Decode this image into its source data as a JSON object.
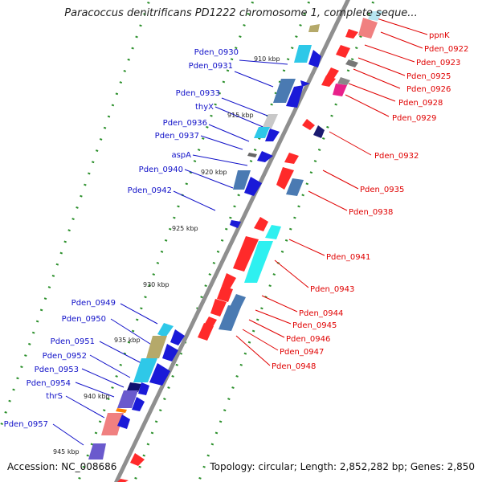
{
  "header": {
    "title": "Paracoccus denitrificans PD1222 chromosome 1, complete seque..."
  },
  "footer": {
    "accession": "Accession: NC_008686",
    "topology": "Topology: circular; Length: 2,852,282 bp; Genes: 2,850"
  },
  "colors": {
    "left_label": "#1010c8",
    "right_label": "#e00000",
    "backbone": "#8f8f8f",
    "tick": "#2a8f2a"
  },
  "ticks": [
    {
      "label": "910 kbp"
    },
    {
      "label": "915 kbp"
    },
    {
      "label": "920 kbp"
    },
    {
      "label": "925 kbp"
    },
    {
      "label": "930 kbp"
    },
    {
      "label": "935 kbp"
    },
    {
      "label": "940 kbp"
    },
    {
      "label": "945 kbp"
    }
  ],
  "left_labels": [
    "Pden_0930",
    "Pden_0931",
    "Pden_0933",
    "thyX",
    "Pden_0936",
    "Pden_0937",
    "aspA",
    "Pden_0940",
    "Pden_0942",
    "Pden_0949",
    "Pden_0950",
    "Pden_0951",
    "Pden_0952",
    "Pden_0953",
    "Pden_0954",
    "thrS",
    "Pden_0957"
  ],
  "right_labels": [
    "ppnK",
    "Pden_0922",
    "Pden_0923",
    "Pden_0925",
    "Pden_0926",
    "Pden_0928",
    "Pden_0929",
    "Pden_0932",
    "Pden_0935",
    "Pden_0938",
    "Pden_0941",
    "Pden_0943",
    "Pden_0944",
    "Pden_0945",
    "Pden_0946",
    "Pden_0947",
    "Pden_0948"
  ]
}
